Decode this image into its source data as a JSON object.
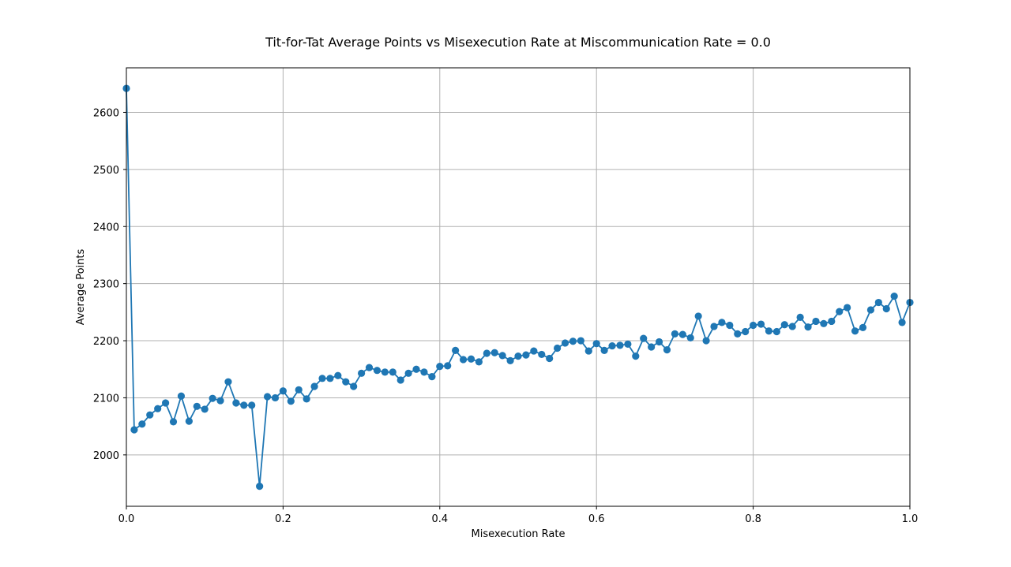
{
  "chart_data": {
    "type": "line",
    "title": "Tit-for-Tat Average Points vs Misexecution Rate at Miscommunication Rate = 0.0",
    "xlabel": "Misexecution Rate",
    "ylabel": "Average Points",
    "xlim": [
      0.0,
      1.0
    ],
    "ylim": [
      1910,
      2678
    ],
    "xticks": [
      0.0,
      0.2,
      0.4,
      0.6,
      0.8,
      1.0
    ],
    "xtick_labels": [
      "0.0",
      "0.2",
      "0.4",
      "0.6",
      "0.8",
      "1.0"
    ],
    "yticks": [
      2000,
      2100,
      2200,
      2300,
      2400,
      2500,
      2600
    ],
    "ytick_labels": [
      "2000",
      "2100",
      "2200",
      "2300",
      "2400",
      "2500",
      "2600"
    ],
    "grid": true,
    "color": "#1f77b4",
    "marker": "circle",
    "x": [
      0.0,
      0.01,
      0.02,
      0.03,
      0.04,
      0.05,
      0.06,
      0.07,
      0.08,
      0.09,
      0.1,
      0.11,
      0.12,
      0.13,
      0.14,
      0.15,
      0.16,
      0.17,
      0.18,
      0.19,
      0.2,
      0.21,
      0.22,
      0.23,
      0.24,
      0.25,
      0.26,
      0.27,
      0.28,
      0.29,
      0.3,
      0.31,
      0.32,
      0.33,
      0.34,
      0.35,
      0.36,
      0.37,
      0.38,
      0.39,
      0.4,
      0.41,
      0.42,
      0.43,
      0.44,
      0.45,
      0.46,
      0.47,
      0.48,
      0.49,
      0.5,
      0.51,
      0.52,
      0.53,
      0.54,
      0.55,
      0.56,
      0.57,
      0.58,
      0.59,
      0.6,
      0.61,
      0.62,
      0.63,
      0.64,
      0.65,
      0.66,
      0.67,
      0.68,
      0.69,
      0.7,
      0.71,
      0.72,
      0.73,
      0.74,
      0.75,
      0.76,
      0.77,
      0.78,
      0.79,
      0.8,
      0.81,
      0.82,
      0.83,
      0.84,
      0.85,
      0.86,
      0.87,
      0.88,
      0.89,
      0.9,
      0.91,
      0.92,
      0.93,
      0.94,
      0.95,
      0.96,
      0.97,
      0.98,
      0.99,
      1.0
    ],
    "y": [
      2642,
      2044,
      2054,
      2070,
      2081,
      2091,
      2058,
      2103,
      2059,
      2085,
      2080,
      2099,
      2095,
      2128,
      2091,
      2087,
      2087,
      1945,
      2102,
      2100,
      2112,
      2094,
      2114,
      2098,
      2120,
      2134,
      2134,
      2139,
      2128,
      2120,
      2143,
      2153,
      2148,
      2145,
      2145,
      2131,
      2143,
      2150,
      2145,
      2137,
      2155,
      2156,
      2183,
      2167,
      2168,
      2163,
      2178,
      2179,
      2174,
      2165,
      2173,
      2175,
      2182,
      2176,
      2169,
      2187,
      2196,
      2199,
      2200,
      2182,
      2195,
      2183,
      2191,
      2192,
      2194,
      2173,
      2204,
      2189,
      2198,
      2184,
      2212,
      2211,
      2205,
      2243,
      2200,
      2225,
      2232,
      2227,
      2212,
      2216,
      2227,
      2229,
      2217,
      2216,
      2228,
      2225,
      2241,
      2224,
      2234,
      2230,
      2234,
      2251,
      2258,
      2217,
      2223,
      2254,
      2267,
      2256,
      2278,
      2232,
      2267
    ]
  }
}
